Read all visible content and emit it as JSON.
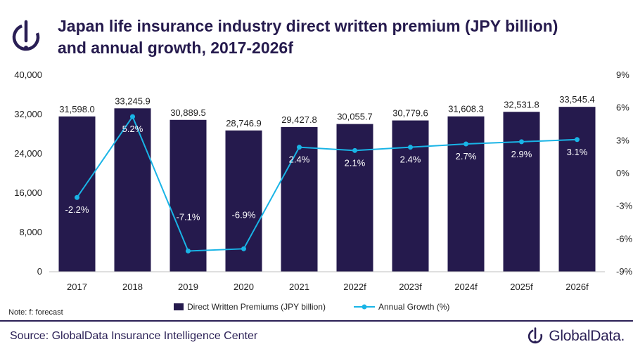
{
  "header": {
    "title_line1": "Japan life insurance industry direct written premium (JPY billion)",
    "title_line2": "and annual growth, 2017-2026f"
  },
  "chart_data": {
    "type": "bar",
    "categories": [
      "2017",
      "2018",
      "2019",
      "2020",
      "2021",
      "2022f",
      "2023f",
      "2024f",
      "2025f",
      "2026f"
    ],
    "series": [
      {
        "name": "Direct Written Premiums (JPY billion)",
        "type": "bar",
        "axis": "left",
        "values": [
          31598.0,
          33245.9,
          30889.5,
          28746.9,
          29427.8,
          30055.7,
          30779.6,
          31608.3,
          32531.8,
          33545.4
        ],
        "labels": [
          "31,598.0",
          "33,245.9",
          "30,889.5",
          "28,746.9",
          "29,427.8",
          "30,055.7",
          "30,779.6",
          "31,608.3",
          "32,531.8",
          "33,545.4"
        ]
      },
      {
        "name": "Annual Growth (%)",
        "type": "line",
        "axis": "right",
        "values": [
          -2.2,
          5.2,
          -7.1,
          -6.9,
          2.4,
          2.1,
          2.4,
          2.7,
          2.9,
          3.1
        ],
        "labels": [
          "-2.2%",
          "5.2%",
          "-7.1%",
          "-6.9%",
          "2.4%",
          "2.1%",
          "2.4%",
          "2.7%",
          "2.9%",
          "3.1%"
        ]
      }
    ],
    "y_left": {
      "ylim": [
        0,
        40000
      ],
      "ticks": [
        "0",
        "8,000",
        "16,000",
        "24,000",
        "32,000",
        "40,000"
      ],
      "tick_values": [
        0,
        8000,
        16000,
        24000,
        32000,
        40000
      ]
    },
    "y_right": {
      "ylim": [
        -9,
        9
      ],
      "ticks": [
        "-9%",
        "-6%",
        "-3%",
        "0%",
        "3%",
        "6%",
        "9%"
      ],
      "tick_values": [
        -9,
        -6,
        -3,
        0,
        3,
        6,
        9
      ]
    },
    "legend": {
      "placement": "bottom-center"
    },
    "colors": {
      "bar": "#251a4d",
      "line": "#19b4e6",
      "line_label": "#ffffff",
      "bar_label": "#1f1f1f"
    }
  },
  "footer": {
    "note": "Note: f: forecast",
    "source": "Source: GlobalData Insurance Intelligence Center",
    "brand": "GlobalData."
  }
}
